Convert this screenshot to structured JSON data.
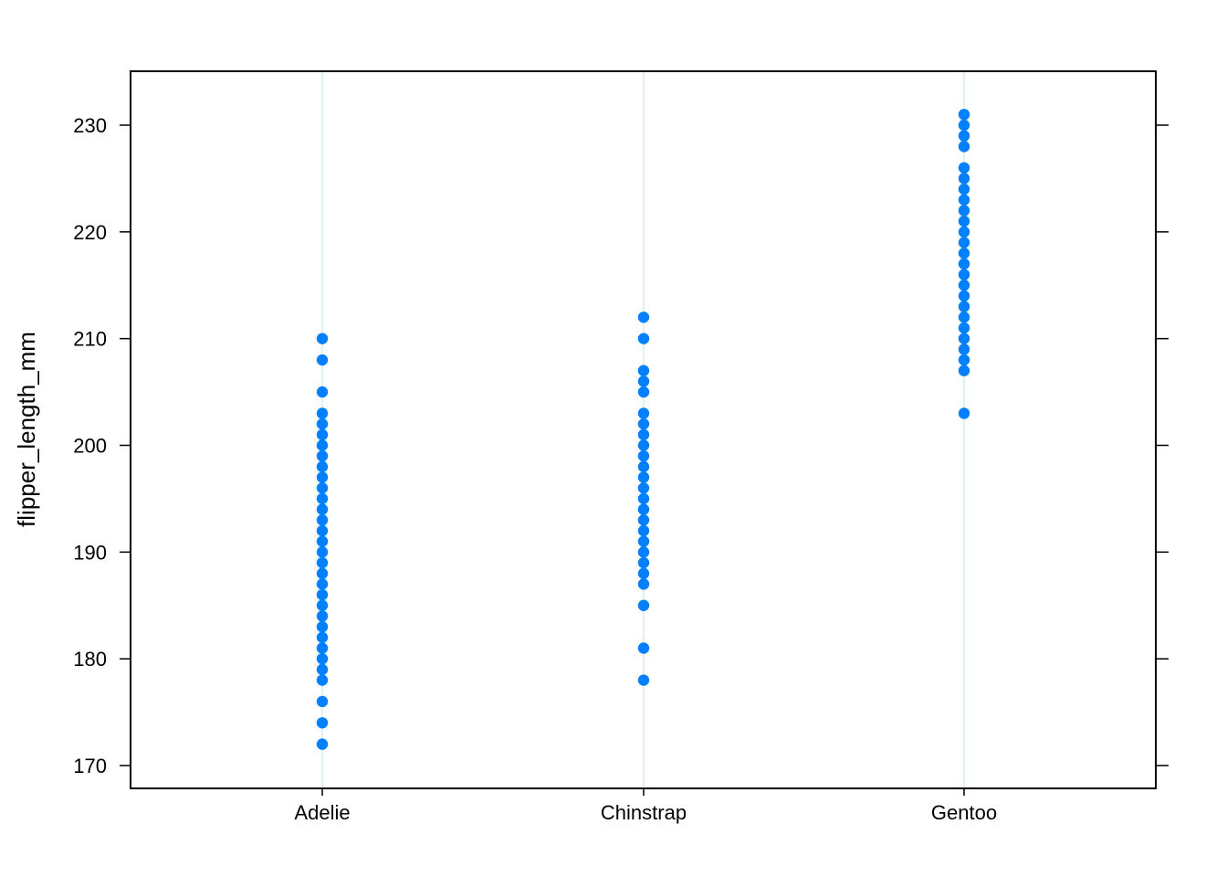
{
  "chart_data": {
    "type": "scatter",
    "title": "",
    "xlabel": "",
    "ylabel": "flipper_length_mm",
    "categories": [
      "Adelie",
      "Chinstrap",
      "Gentoo"
    ],
    "ylim": [
      168,
      235
    ],
    "yticks": [
      170,
      180,
      190,
      200,
      210,
      220,
      230
    ],
    "grid": "vertical reference lines at each category",
    "point_color": "#0080ff",
    "ref_line_color": "#d3eef2",
    "series": [
      {
        "category": "Adelie",
        "values": [
          172,
          174,
          176,
          178,
          179,
          180,
          181,
          182,
          183,
          184,
          185,
          186,
          187,
          188,
          189,
          190,
          191,
          192,
          193,
          194,
          195,
          196,
          197,
          198,
          199,
          200,
          201,
          202,
          203,
          205,
          208,
          210
        ]
      },
      {
        "category": "Chinstrap",
        "values": [
          178,
          181,
          185,
          187,
          188,
          189,
          190,
          191,
          192,
          193,
          194,
          195,
          196,
          197,
          198,
          199,
          200,
          201,
          202,
          203,
          205,
          206,
          207,
          210,
          212
        ]
      },
      {
        "category": "Gentoo",
        "values": [
          203,
          207,
          208,
          209,
          210,
          211,
          212,
          213,
          214,
          215,
          216,
          217,
          218,
          219,
          220,
          221,
          222,
          223,
          224,
          225,
          226,
          228,
          229,
          230,
          231
        ]
      }
    ]
  }
}
